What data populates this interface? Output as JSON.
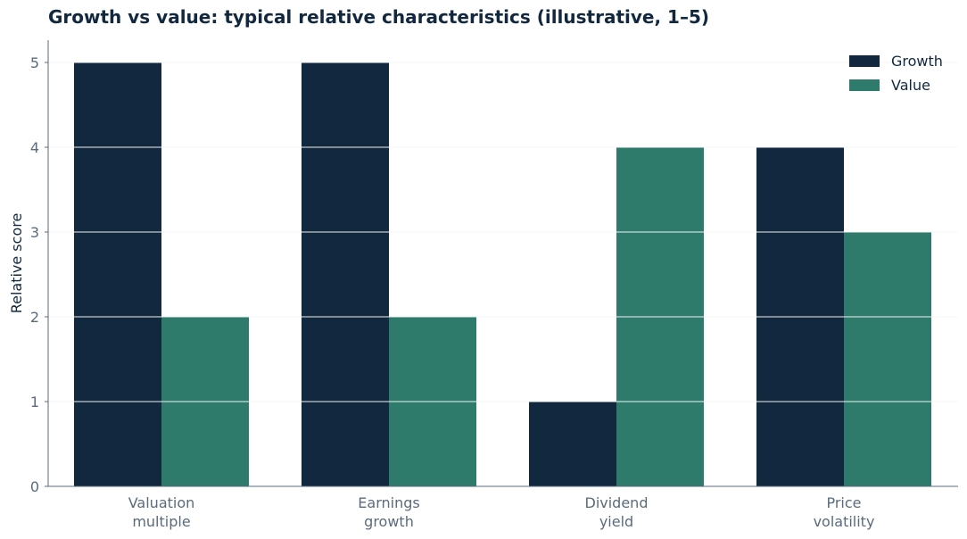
{
  "chart_data": {
    "type": "bar",
    "title": "Growth vs value: typical relative characteristics (illustrative, 1–5)",
    "xlabel": "",
    "ylabel": "Relative score",
    "categories": [
      [
        "Valuation",
        "multiple"
      ],
      [
        "Earnings",
        "growth"
      ],
      [
        "Dividend",
        "yield"
      ],
      [
        "Price",
        "volatility"
      ]
    ],
    "series": [
      {
        "name": "Growth",
        "color": "#12283f",
        "values": [
          5,
          5,
          1,
          4
        ]
      },
      {
        "name": "Value",
        "color": "#2e7b6b",
        "values": [
          2,
          2,
          4,
          3
        ]
      }
    ],
    "ylim": [
      0,
      5
    ],
    "yticks": [
      0,
      1,
      2,
      3,
      4,
      5
    ],
    "grid": true,
    "legend_position": "top-right"
  }
}
